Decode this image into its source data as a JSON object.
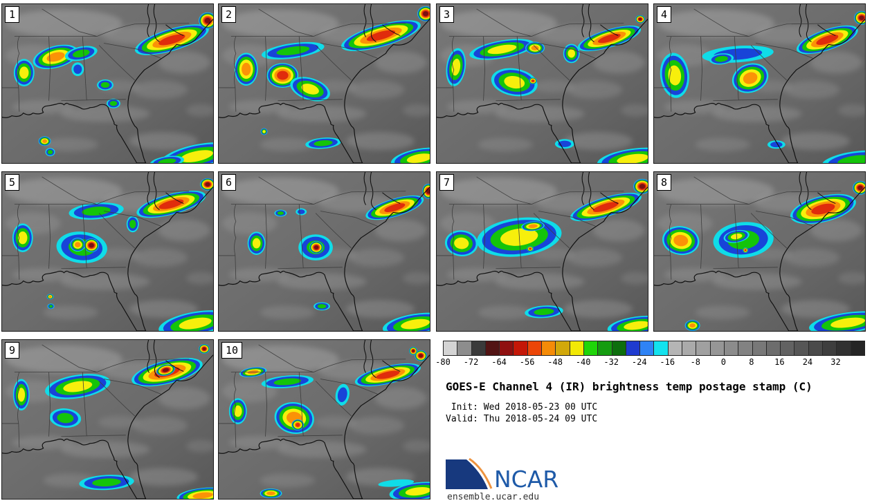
{
  "info": {
    "title": "GOES-E Channel 4 (IR) brightness temp postage stamp (C)",
    "init_line": " Init: Wed 2018-05-23 00 UTC",
    "valid_line": "Valid: Thu 2018-05-24 09 UTC",
    "logo_text": "NCAR",
    "site": "ensemble.ucar.edu"
  },
  "colorbar": {
    "unit": "C",
    "range_c": [
      -80,
      40
    ],
    "ticks": [
      "-80",
      "-72",
      "-64",
      "-56",
      "-48",
      "-40",
      "-32",
      "-24",
      "-16",
      "-8",
      "0",
      "8",
      "16",
      "24",
      "32"
    ],
    "segments": [
      "#d4d4d4",
      "#8d8d8d",
      "#3a3a3a",
      "#521414",
      "#8f1010",
      "#c41707",
      "#ec4607",
      "#f58b07",
      "#d2a80a",
      "#f2e905",
      "#1fd509",
      "#159c10",
      "#0d6e0d",
      "#1f3bd0",
      "#2f83f5",
      "#13e2ee",
      "#b5b5b5",
      "#aaaaaa",
      "#a0a0a0",
      "#969696",
      "#8c8c8c",
      "#828282",
      "#787878",
      "#6d6d6d",
      "#626262",
      "#565656",
      "#4a4a4a",
      "#3e3e3e",
      "#313131",
      "#252525"
    ]
  },
  "palette": {
    "storm_rings": [
      "#10dce8",
      "#1844d8",
      "#14c40a",
      "#f7ef0c",
      "#fb9207",
      "#e02c0c",
      "#7c1010"
    ],
    "land_gray": "#787878",
    "ocean_gray": "#585858",
    "cloud_gray": "#c8c8c8",
    "coast_line": "#111111",
    "state_line": "#3d3d3d"
  },
  "chart_data": {
    "type": "heatmap",
    "title": "GOES-E Channel 4 (IR) brightness temp postage stamp (C)",
    "init_time": "Wed 2018-05-23 00 UTC",
    "valid_time": "Thu 2018-05-24 09 UTC",
    "variable": "IR brightness temperature",
    "unit": "C",
    "colorbar_ticks": [
      -80,
      -72,
      -64,
      -56,
      -48,
      -40,
      -32,
      -24,
      -16,
      -8,
      0,
      8,
      16,
      24,
      32
    ],
    "colorbar_range": [
      -80,
      40
    ],
    "ensemble_members": [
      "1",
      "2",
      "3",
      "4",
      "5",
      "6",
      "7",
      "8",
      "9",
      "10"
    ],
    "region": "Southeast United States / Gulf of Mexico / western Atlantic"
  },
  "panels": [
    {
      "number": "1",
      "storms": [
        [
          78,
          77,
          34,
          16,
          -15,
          4
        ],
        [
          115,
          72,
          24,
          10,
          -12,
          2
        ],
        [
          32,
          100,
          15,
          20,
          0,
          3
        ],
        [
          110,
          95,
          9,
          10,
          0,
          1
        ],
        [
          150,
          118,
          12,
          8,
          0,
          2
        ],
        [
          162,
          145,
          10,
          7,
          0,
          2
        ],
        [
          247,
          52,
          56,
          16,
          -17,
          5
        ],
        [
          299,
          24,
          13,
          12,
          0,
          6
        ],
        [
          62,
          200,
          9,
          7,
          0,
          4
        ],
        [
          70,
          216,
          7,
          6,
          0,
          2
        ],
        [
          283,
          222,
          55,
          17,
          -12,
          3
        ],
        [
          240,
          230,
          25,
          8,
          -8,
          2
        ]
      ]
    },
    {
      "number": "2",
      "storms": [
        [
          40,
          95,
          17,
          24,
          0,
          4
        ],
        [
          108,
          68,
          46,
          11,
          -8,
          2
        ],
        [
          93,
          104,
          23,
          18,
          0,
          5
        ],
        [
          133,
          124,
          30,
          16,
          18,
          3
        ],
        [
          236,
          46,
          60,
          16,
          -16,
          5
        ],
        [
          301,
          14,
          12,
          11,
          0,
          6
        ],
        [
          152,
          203,
          26,
          8,
          -5,
          2
        ],
        [
          292,
          225,
          42,
          14,
          -10,
          3
        ],
        [
          66,
          186,
          5,
          5,
          0,
          3
        ]
      ]
    },
    {
      "number": "3",
      "storms": [
        [
          28,
          92,
          14,
          28,
          8,
          3
        ],
        [
          95,
          66,
          48,
          13,
          -10,
          3
        ],
        [
          143,
          64,
          14,
          9,
          0,
          4
        ],
        [
          113,
          114,
          34,
          20,
          10,
          3
        ],
        [
          140,
          112,
          6,
          5,
          0,
          5
        ],
        [
          196,
          72,
          12,
          14,
          0,
          3
        ],
        [
          251,
          50,
          48,
          13,
          -17,
          5
        ],
        [
          296,
          22,
          7,
          6,
          0,
          6
        ],
        [
          285,
          226,
          52,
          15,
          -8,
          3
        ],
        [
          186,
          204,
          14,
          7,
          0,
          1
        ]
      ]
    },
    {
      "number": "4",
      "storms": [
        [
          30,
          104,
          21,
          33,
          -6,
          3
        ],
        [
          122,
          73,
          52,
          12,
          -4,
          1
        ],
        [
          98,
          80,
          18,
          8,
          -6,
          2
        ],
        [
          140,
          108,
          27,
          21,
          -20,
          4
        ],
        [
          252,
          52,
          47,
          15,
          -19,
          5
        ],
        [
          302,
          20,
          11,
          10,
          0,
          6
        ],
        [
          292,
          228,
          48,
          13,
          -8,
          2
        ],
        [
          178,
          205,
          13,
          6,
          0,
          1
        ]
      ]
    },
    {
      "number": "5",
      "storms": [
        [
          30,
          96,
          15,
          21,
          0,
          3
        ],
        [
          137,
          57,
          40,
          12,
          -5,
          2
        ],
        [
          190,
          76,
          9,
          12,
          0,
          2
        ],
        [
          116,
          110,
          37,
          23,
          5,
          2
        ],
        [
          110,
          106,
          11,
          10,
          0,
          4
        ],
        [
          130,
          107,
          11,
          10,
          0,
          6
        ],
        [
          246,
          47,
          52,
          15,
          -15,
          5
        ],
        [
          299,
          18,
          11,
          9,
          0,
          6
        ],
        [
          281,
          221,
          54,
          17,
          -10,
          3
        ],
        [
          70,
          182,
          5,
          4,
          0,
          4
        ],
        [
          71,
          196,
          5,
          4,
          0,
          2
        ]
      ]
    },
    {
      "number": "6",
      "storms": [
        [
          55,
          104,
          13,
          17,
          0,
          3
        ],
        [
          90,
          60,
          9,
          5,
          0,
          2
        ],
        [
          120,
          58,
          8,
          5,
          0,
          1
        ],
        [
          141,
          110,
          25,
          19,
          0,
          2
        ],
        [
          142,
          110,
          10,
          9,
          0,
          6
        ],
        [
          256,
          52,
          44,
          13,
          -17,
          5
        ],
        [
          305,
          28,
          9,
          11,
          0,
          6
        ],
        [
          286,
          222,
          48,
          15,
          -9,
          3
        ],
        [
          150,
          196,
          12,
          6,
          0,
          2
        ]
      ]
    },
    {
      "number": "7",
      "storms": [
        [
          120,
          95,
          62,
          28,
          -7,
          3
        ],
        [
          140,
          79,
          17,
          7,
          -5,
          4
        ],
        [
          136,
          112,
          5,
          4,
          0,
          5
        ],
        [
          36,
          104,
          24,
          19,
          5,
          3
        ],
        [
          246,
          51,
          54,
          14,
          -17,
          5
        ],
        [
          299,
          21,
          13,
          11,
          0,
          6
        ],
        [
          156,
          204,
          28,
          9,
          -4,
          2
        ],
        [
          291,
          224,
          43,
          13,
          -8,
          3
        ]
      ]
    },
    {
      "number": "8",
      "storms": [
        [
          39,
          100,
          27,
          21,
          8,
          4
        ],
        [
          130,
          99,
          44,
          26,
          -5,
          2
        ],
        [
          120,
          94,
          19,
          9,
          -10,
          3
        ],
        [
          133,
          114,
          4,
          4,
          0,
          5
        ],
        [
          246,
          54,
          49,
          19,
          -14,
          5
        ],
        [
          300,
          23,
          11,
          10,
          0,
          6
        ],
        [
          282,
          220,
          57,
          15,
          -8,
          3
        ],
        [
          56,
          224,
          11,
          8,
          0,
          4
        ]
      ]
    },
    {
      "number": "9",
      "storms": [
        [
          28,
          80,
          12,
          23,
          0,
          3
        ],
        [
          110,
          68,
          48,
          17,
          -9,
          3
        ],
        [
          92,
          114,
          23,
          14,
          5,
          2
        ],
        [
          240,
          47,
          53,
          17,
          -14,
          5
        ],
        [
          238,
          44,
          14,
          8,
          -14,
          6
        ],
        [
          294,
          13,
          8,
          7,
          0,
          6
        ],
        [
          152,
          208,
          40,
          11,
          -3,
          2
        ],
        [
          292,
          227,
          38,
          11,
          -6,
          4
        ]
      ]
    },
    {
      "number": "10",
      "storms": [
        [
          50,
          47,
          20,
          7,
          -8,
          4
        ],
        [
          28,
          104,
          13,
          19,
          0,
          3
        ],
        [
          100,
          61,
          38,
          9,
          -5,
          2
        ],
        [
          110,
          114,
          29,
          23,
          10,
          4
        ],
        [
          115,
          124,
          9,
          8,
          0,
          5
        ],
        [
          180,
          80,
          10,
          16,
          10,
          1
        ],
        [
          246,
          51,
          49,
          13,
          -13,
          5
        ],
        [
          294,
          23,
          9,
          8,
          0,
          6
        ],
        [
          283,
          16,
          6,
          6,
          0,
          6
        ],
        [
          76,
          224,
          16,
          7,
          0,
          4
        ],
        [
          290,
          221,
          42,
          13,
          -7,
          3
        ],
        [
          258,
          209,
          26,
          5,
          -5,
          0
        ]
      ]
    }
  ]
}
